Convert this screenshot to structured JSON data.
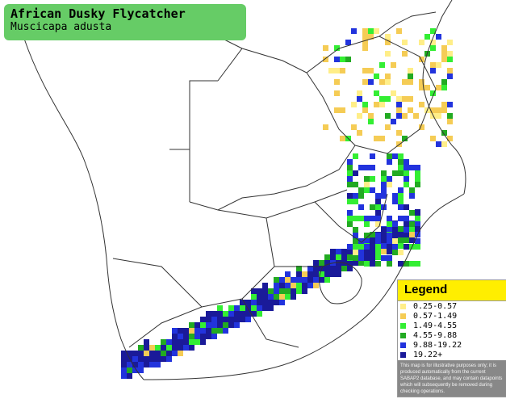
{
  "title": {
    "common_name": "African Dusky Flycatcher",
    "scientific_name": "Muscicapa adusta"
  },
  "legend": {
    "heading": "Legend",
    "items": [
      {
        "label": "0.25-0.57",
        "color": "#ffee88"
      },
      {
        "label": "0.57-1.49",
        "color": "#f5cc55"
      },
      {
        "label": "1.49-4.55",
        "color": "#33ee33"
      },
      {
        "label": "4.55-9.88",
        "color": "#22aa22"
      },
      {
        "label": "9.88-19.22",
        "color": "#2233dd"
      },
      {
        "label": "19.22+",
        "color": "#1a1a99"
      }
    ],
    "disclaimer": "This map is for illustrative purposes only; it is produced automatically from the current SABAP2 database, and may contain datapoints which will subsequently be removed during checking operations."
  }
}
